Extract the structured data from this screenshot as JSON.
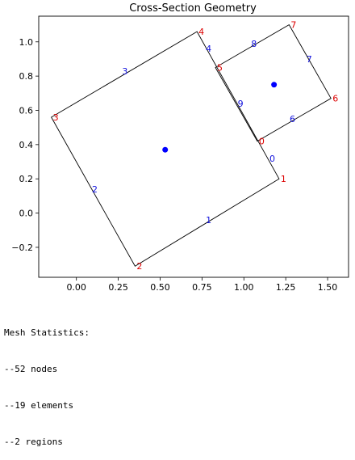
{
  "chart_data": {
    "type": "scatter",
    "title": "Cross-Section Geometry",
    "xlim": [
      -0.225,
      1.625
    ],
    "ylim": [
      -0.375,
      1.15
    ],
    "xticks": [
      0.0,
      0.25,
      0.5,
      0.75,
      1.0,
      1.25,
      1.5
    ],
    "xtick_labels": [
      "0.00",
      "0.25",
      "0.50",
      "0.75",
      "1.00",
      "1.25",
      "1.50"
    ],
    "yticks": [
      -0.2,
      0.0,
      0.2,
      0.4,
      0.6,
      0.8,
      1.0
    ],
    "ytick_labels": [
      "−0.2",
      "0.0",
      "0.2",
      "0.4",
      "0.6",
      "0.8",
      "1.0"
    ],
    "grid": false,
    "colors": {
      "outline": "#000000",
      "node_label": "#dd0000",
      "edge_label": "#1010dd",
      "centroid": "#0000ff"
    },
    "regions": [
      {
        "vertices": [
          {
            "x": 1.21,
            "y": 0.2,
            "label": "1"
          },
          {
            "x": 0.35,
            "y": -0.31,
            "label": "2"
          },
          {
            "x": -0.15,
            "y": 0.56,
            "label": "3"
          },
          {
            "x": 0.72,
            "y": 1.06,
            "label": "4"
          }
        ],
        "edges": [
          {
            "x": 0.79,
            "y": -0.04,
            "label": "1"
          },
          {
            "x": 0.11,
            "y": 0.14,
            "label": "2"
          },
          {
            "x": 0.29,
            "y": 0.83,
            "label": "3"
          },
          {
            "x": 0.79,
            "y": 0.96,
            "label": "4"
          },
          {
            "x": 1.17,
            "y": 0.32,
            "label": "0"
          }
        ],
        "centroid": {
          "x": 0.53,
          "y": 0.37
        }
      },
      {
        "vertices": [
          {
            "x": 1.08,
            "y": 0.42,
            "label": "0"
          },
          {
            "x": 0.83,
            "y": 0.85,
            "label": "5"
          },
          {
            "x": 1.27,
            "y": 1.1,
            "label": "7"
          },
          {
            "x": 1.52,
            "y": 0.67,
            "label": "6"
          }
        ],
        "edges": [
          {
            "x": 0.98,
            "y": 0.64,
            "label": "9"
          },
          {
            "x": 1.06,
            "y": 0.99,
            "label": "8"
          },
          {
            "x": 1.39,
            "y": 0.9,
            "label": "7"
          },
          {
            "x": 1.29,
            "y": 0.55,
            "label": "6"
          }
        ],
        "centroid": {
          "x": 1.18,
          "y": 0.75
        }
      }
    ]
  },
  "stats": {
    "heading": "Mesh Statistics:",
    "lines": [
      "--52 nodes",
      "--19 elements",
      "--2 regions"
    ]
  }
}
